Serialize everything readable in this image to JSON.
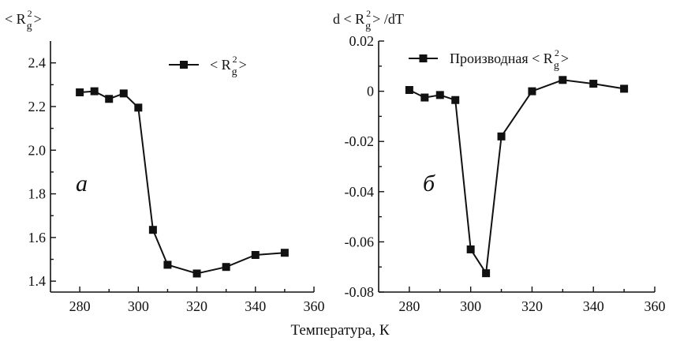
{
  "chart_data": [
    {
      "type": "line",
      "ylabel_base": "< R",
      "ylabel_sub": "g",
      "ylabel_sup": "2",
      "ylabel_end": ">",
      "panel_label": "а",
      "xlim": [
        270,
        360
      ],
      "ylim": [
        1.35,
        2.5
      ],
      "xticks": [
        280,
        300,
        320,
        340,
        360
      ],
      "yticks": [
        1.4,
        1.6,
        1.8,
        2.0,
        2.2,
        2.4
      ],
      "ytick_labels": [
        "1.4",
        "1.6",
        "1.8",
        "2.0",
        "2.2",
        "2.4"
      ],
      "grid": false,
      "legend_position": "top-right",
      "series": [
        {
          "legend_prefix": "< R",
          "legend_sub": "g",
          "legend_sup": "2",
          "legend_suffix": ">",
          "x": [
            280,
            285,
            290,
            295,
            300,
            305,
            310,
            320,
            330,
            340,
            350
          ],
          "y": [
            2.265,
            2.27,
            2.235,
            2.26,
            2.195,
            1.635,
            1.475,
            1.435,
            1.465,
            1.52,
            1.53
          ]
        }
      ]
    },
    {
      "type": "line",
      "ylabel_base": "d < R",
      "ylabel_sub": "g",
      "ylabel_sup": "2",
      "ylabel_end": "> /dT",
      "panel_label": "б",
      "xlim": [
        270,
        360
      ],
      "ylim": [
        -0.08,
        0.02
      ],
      "xticks": [
        280,
        300,
        320,
        340,
        360
      ],
      "yticks": [
        -0.08,
        -0.06,
        -0.04,
        -0.02,
        0,
        0.02
      ],
      "ytick_labels": [
        "-0.08",
        "-0.06",
        "-0.04",
        "-0.02",
        "0",
        "0.02"
      ],
      "grid": false,
      "legend_position": "top-right",
      "series": [
        {
          "legend_prefix": "Производная < R",
          "legend_sub": "g",
          "legend_sup": "2",
          "legend_suffix": ">",
          "x": [
            280,
            285,
            290,
            295,
            300,
            305,
            310,
            320,
            330,
            340,
            350
          ],
          "y": [
            0.0005,
            -0.0025,
            -0.0015,
            -0.0035,
            -0.063,
            -0.0725,
            -0.018,
            0,
            0.0045,
            0.003,
            0.001
          ]
        }
      ]
    }
  ],
  "xlabel": "Температура, К"
}
